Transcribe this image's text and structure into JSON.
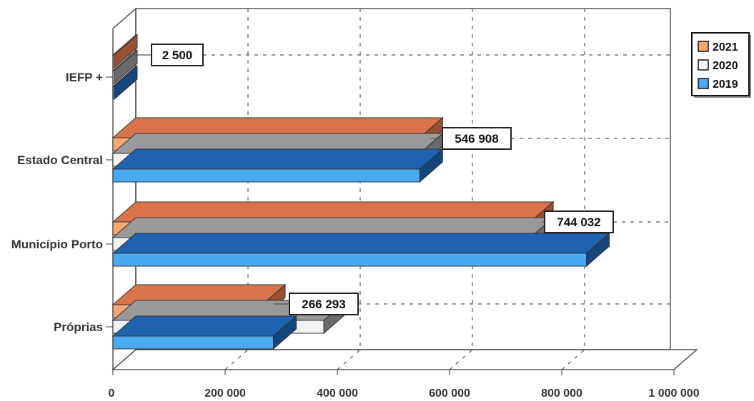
{
  "chart_data": {
    "type": "bar",
    "orientation": "horizontal",
    "categories": [
      "IEFP +",
      "Estado Central",
      "Município Porto",
      "Próprias"
    ],
    "series": [
      {
        "name": "2021",
        "values": [
          2500,
          546908,
          744032,
          266293
        ],
        "color": "#F7A872",
        "top_color": "#D9744A"
      },
      {
        "name": "2020",
        "values": [
          2500,
          546908,
          744032,
          376000
        ],
        "color": "#F2F2F2",
        "top_color": "#999999"
      },
      {
        "name": "2019",
        "values": [
          2500,
          546908,
          844000,
          286000
        ],
        "color": "#4AAAF0",
        "top_color": "#1F62B0"
      }
    ],
    "data_labels": [
      {
        "category": "IEFP +",
        "text": "2 500"
      },
      {
        "category": "Estado Central",
        "text": "546 908"
      },
      {
        "category": "Município Porto",
        "text": "744 032"
      },
      {
        "category": "Próprias",
        "text": "266 293"
      }
    ],
    "x_ticks": [
      "0",
      "200 000",
      "400 000",
      "600 000",
      "800 000",
      "1 000 000"
    ],
    "xlim": [
      0,
      1000000
    ],
    "grid": true,
    "legend_position": "top-right",
    "view": "3d"
  }
}
